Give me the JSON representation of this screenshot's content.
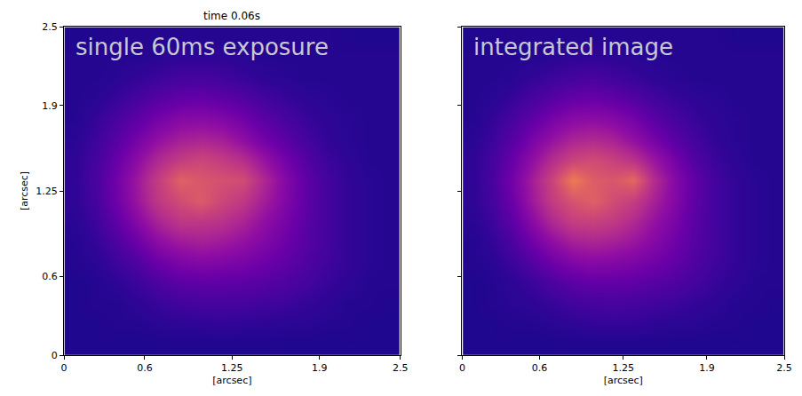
{
  "chart_data": [
    {
      "type": "heatmap",
      "title": "time 0.06s",
      "annotations": [
        "single 60ms exposure"
      ],
      "xlabel": "[arcsec]",
      "ylabel": "[arcsec]",
      "xlim": [
        0,
        2.5
      ],
      "ylim": [
        0,
        2.5
      ],
      "xticks": [
        0,
        0.6,
        1.25,
        1.9,
        2.5
      ],
      "yticks": [
        0,
        0.6,
        1.25,
        1.9,
        2.5
      ],
      "zlim": [
        0,
        1
      ],
      "x": [
        0.08,
        0.23,
        0.39,
        0.55,
        0.7,
        0.86,
        1.02,
        1.17,
        1.33,
        1.48,
        1.64,
        1.8,
        1.95,
        2.11,
        2.27,
        2.42
      ],
      "y": [
        0.08,
        0.23,
        0.39,
        0.55,
        0.7,
        0.86,
        1.02,
        1.17,
        1.33,
        1.48,
        1.64,
        1.8,
        1.95,
        2.11,
        2.27,
        2.42
      ],
      "z": [
        [
          0.04,
          0.04,
          0.04,
          0.04,
          0.04,
          0.04,
          0.04,
          0.04,
          0.04,
          0.04,
          0.04,
          0.04,
          0.04,
          0.04,
          0.04,
          0.04
        ],
        [
          0.04,
          0.04,
          0.05,
          0.05,
          0.06,
          0.07,
          0.07,
          0.08,
          0.07,
          0.07,
          0.06,
          0.06,
          0.05,
          0.05,
          0.04,
          0.04
        ],
        [
          0.04,
          0.05,
          0.05,
          0.07,
          0.09,
          0.11,
          0.12,
          0.12,
          0.12,
          0.11,
          0.1,
          0.08,
          0.07,
          0.05,
          0.05,
          0.04
        ],
        [
          0.04,
          0.05,
          0.07,
          0.1,
          0.14,
          0.18,
          0.19,
          0.19,
          0.18,
          0.17,
          0.15,
          0.12,
          0.09,
          0.07,
          0.05,
          0.05
        ],
        [
          0.05,
          0.06,
          0.1,
          0.15,
          0.22,
          0.27,
          0.29,
          0.28,
          0.26,
          0.23,
          0.19,
          0.15,
          0.11,
          0.08,
          0.06,
          0.05
        ],
        [
          0.05,
          0.08,
          0.14,
          0.23,
          0.32,
          0.38,
          0.4,
          0.38,
          0.34,
          0.29,
          0.23,
          0.17,
          0.12,
          0.08,
          0.06,
          0.05
        ],
        [
          0.06,
          0.1,
          0.19,
          0.31,
          0.42,
          0.5,
          0.5,
          0.48,
          0.42,
          0.34,
          0.26,
          0.18,
          0.12,
          0.08,
          0.06,
          0.05
        ],
        [
          0.07,
          0.12,
          0.23,
          0.37,
          0.5,
          0.58,
          0.64,
          0.56,
          0.5,
          0.4,
          0.29,
          0.19,
          0.12,
          0.08,
          0.06,
          0.05
        ],
        [
          0.07,
          0.13,
          0.24,
          0.38,
          0.52,
          0.66,
          0.62,
          0.6,
          0.58,
          0.44,
          0.3,
          0.19,
          0.12,
          0.08,
          0.06,
          0.05
        ],
        [
          0.07,
          0.12,
          0.21,
          0.33,
          0.44,
          0.52,
          0.56,
          0.52,
          0.46,
          0.36,
          0.25,
          0.16,
          0.1,
          0.07,
          0.05,
          0.05
        ],
        [
          0.06,
          0.1,
          0.17,
          0.26,
          0.34,
          0.4,
          0.42,
          0.4,
          0.33,
          0.25,
          0.18,
          0.12,
          0.08,
          0.06,
          0.05,
          0.05
        ],
        [
          0.05,
          0.08,
          0.13,
          0.19,
          0.25,
          0.3,
          0.31,
          0.29,
          0.24,
          0.18,
          0.13,
          0.09,
          0.07,
          0.06,
          0.05,
          0.05
        ],
        [
          0.05,
          0.06,
          0.09,
          0.13,
          0.17,
          0.2,
          0.21,
          0.19,
          0.16,
          0.12,
          0.09,
          0.07,
          0.06,
          0.05,
          0.05,
          0.05
        ],
        [
          0.05,
          0.05,
          0.06,
          0.08,
          0.1,
          0.12,
          0.12,
          0.11,
          0.09,
          0.07,
          0.06,
          0.05,
          0.05,
          0.05,
          0.05,
          0.05
        ],
        [
          0.05,
          0.05,
          0.05,
          0.05,
          0.06,
          0.07,
          0.07,
          0.07,
          0.06,
          0.05,
          0.05,
          0.05,
          0.05,
          0.05,
          0.05,
          0.05
        ],
        [
          0.04,
          0.04,
          0.05,
          0.05,
          0.05,
          0.05,
          0.05,
          0.05,
          0.05,
          0.05,
          0.05,
          0.05,
          0.05,
          0.04,
          0.04,
          0.04
        ]
      ]
    },
    {
      "type": "heatmap",
      "annotations": [
        "integrated image"
      ],
      "xlabel": "[arcsec]",
      "tick_labels": "x",
      "xlim": [
        0,
        2.5
      ],
      "ylim": [
        0,
        2.5
      ],
      "xticks": [
        0,
        0.6,
        1.25,
        1.9,
        2.5
      ],
      "yticks": [
        0,
        0.6,
        1.25,
        1.9,
        2.5
      ],
      "zlim": [
        0,
        1
      ],
      "x": [
        0.08,
        0.23,
        0.39,
        0.55,
        0.7,
        0.86,
        1.02,
        1.17,
        1.33,
        1.48,
        1.64,
        1.8,
        1.95,
        2.11,
        2.27,
        2.42
      ],
      "y": [
        0.08,
        0.23,
        0.39,
        0.55,
        0.7,
        0.86,
        1.02,
        1.17,
        1.33,
        1.48,
        1.64,
        1.8,
        1.95,
        2.11,
        2.27,
        2.42
      ],
      "z": [
        [
          0.04,
          0.04,
          0.04,
          0.04,
          0.04,
          0.04,
          0.04,
          0.04,
          0.04,
          0.04,
          0.04,
          0.04,
          0.04,
          0.04,
          0.04,
          0.04
        ],
        [
          0.04,
          0.04,
          0.05,
          0.05,
          0.06,
          0.07,
          0.08,
          0.08,
          0.08,
          0.07,
          0.06,
          0.06,
          0.05,
          0.05,
          0.04,
          0.04
        ],
        [
          0.04,
          0.05,
          0.06,
          0.07,
          0.09,
          0.11,
          0.12,
          0.13,
          0.12,
          0.11,
          0.1,
          0.08,
          0.07,
          0.05,
          0.05,
          0.04
        ],
        [
          0.04,
          0.05,
          0.07,
          0.1,
          0.14,
          0.18,
          0.2,
          0.2,
          0.19,
          0.17,
          0.15,
          0.12,
          0.09,
          0.07,
          0.05,
          0.05
        ],
        [
          0.05,
          0.06,
          0.1,
          0.16,
          0.23,
          0.28,
          0.3,
          0.29,
          0.27,
          0.24,
          0.2,
          0.15,
          0.11,
          0.08,
          0.06,
          0.05
        ],
        [
          0.05,
          0.08,
          0.14,
          0.24,
          0.33,
          0.4,
          0.42,
          0.4,
          0.36,
          0.3,
          0.24,
          0.17,
          0.12,
          0.08,
          0.06,
          0.05
        ],
        [
          0.06,
          0.1,
          0.19,
          0.32,
          0.44,
          0.53,
          0.54,
          0.51,
          0.44,
          0.35,
          0.27,
          0.18,
          0.12,
          0.08,
          0.06,
          0.05
        ],
        [
          0.07,
          0.12,
          0.23,
          0.38,
          0.52,
          0.61,
          0.66,
          0.58,
          0.52,
          0.41,
          0.3,
          0.19,
          0.12,
          0.08,
          0.06,
          0.05
        ],
        [
          0.07,
          0.13,
          0.25,
          0.4,
          0.55,
          0.75,
          0.64,
          0.62,
          0.68,
          0.46,
          0.31,
          0.2,
          0.12,
          0.08,
          0.06,
          0.05
        ],
        [
          0.07,
          0.12,
          0.22,
          0.34,
          0.46,
          0.55,
          0.58,
          0.54,
          0.48,
          0.37,
          0.26,
          0.16,
          0.1,
          0.07,
          0.05,
          0.05
        ],
        [
          0.06,
          0.1,
          0.17,
          0.27,
          0.35,
          0.42,
          0.44,
          0.41,
          0.34,
          0.26,
          0.18,
          0.12,
          0.08,
          0.06,
          0.05,
          0.05
        ],
        [
          0.05,
          0.08,
          0.13,
          0.19,
          0.26,
          0.31,
          0.32,
          0.3,
          0.25,
          0.18,
          0.13,
          0.09,
          0.07,
          0.06,
          0.05,
          0.05
        ],
        [
          0.05,
          0.06,
          0.09,
          0.13,
          0.17,
          0.21,
          0.22,
          0.2,
          0.16,
          0.12,
          0.09,
          0.07,
          0.06,
          0.05,
          0.05,
          0.05
        ],
        [
          0.05,
          0.05,
          0.06,
          0.08,
          0.1,
          0.12,
          0.13,
          0.11,
          0.09,
          0.07,
          0.06,
          0.05,
          0.05,
          0.05,
          0.05,
          0.05
        ],
        [
          0.05,
          0.05,
          0.05,
          0.05,
          0.06,
          0.07,
          0.07,
          0.07,
          0.06,
          0.05,
          0.05,
          0.05,
          0.05,
          0.05,
          0.05,
          0.05
        ],
        [
          0.04,
          0.04,
          0.05,
          0.05,
          0.05,
          0.05,
          0.05,
          0.05,
          0.05,
          0.05,
          0.05,
          0.05,
          0.05,
          0.04,
          0.04,
          0.04
        ]
      ]
    }
  ]
}
